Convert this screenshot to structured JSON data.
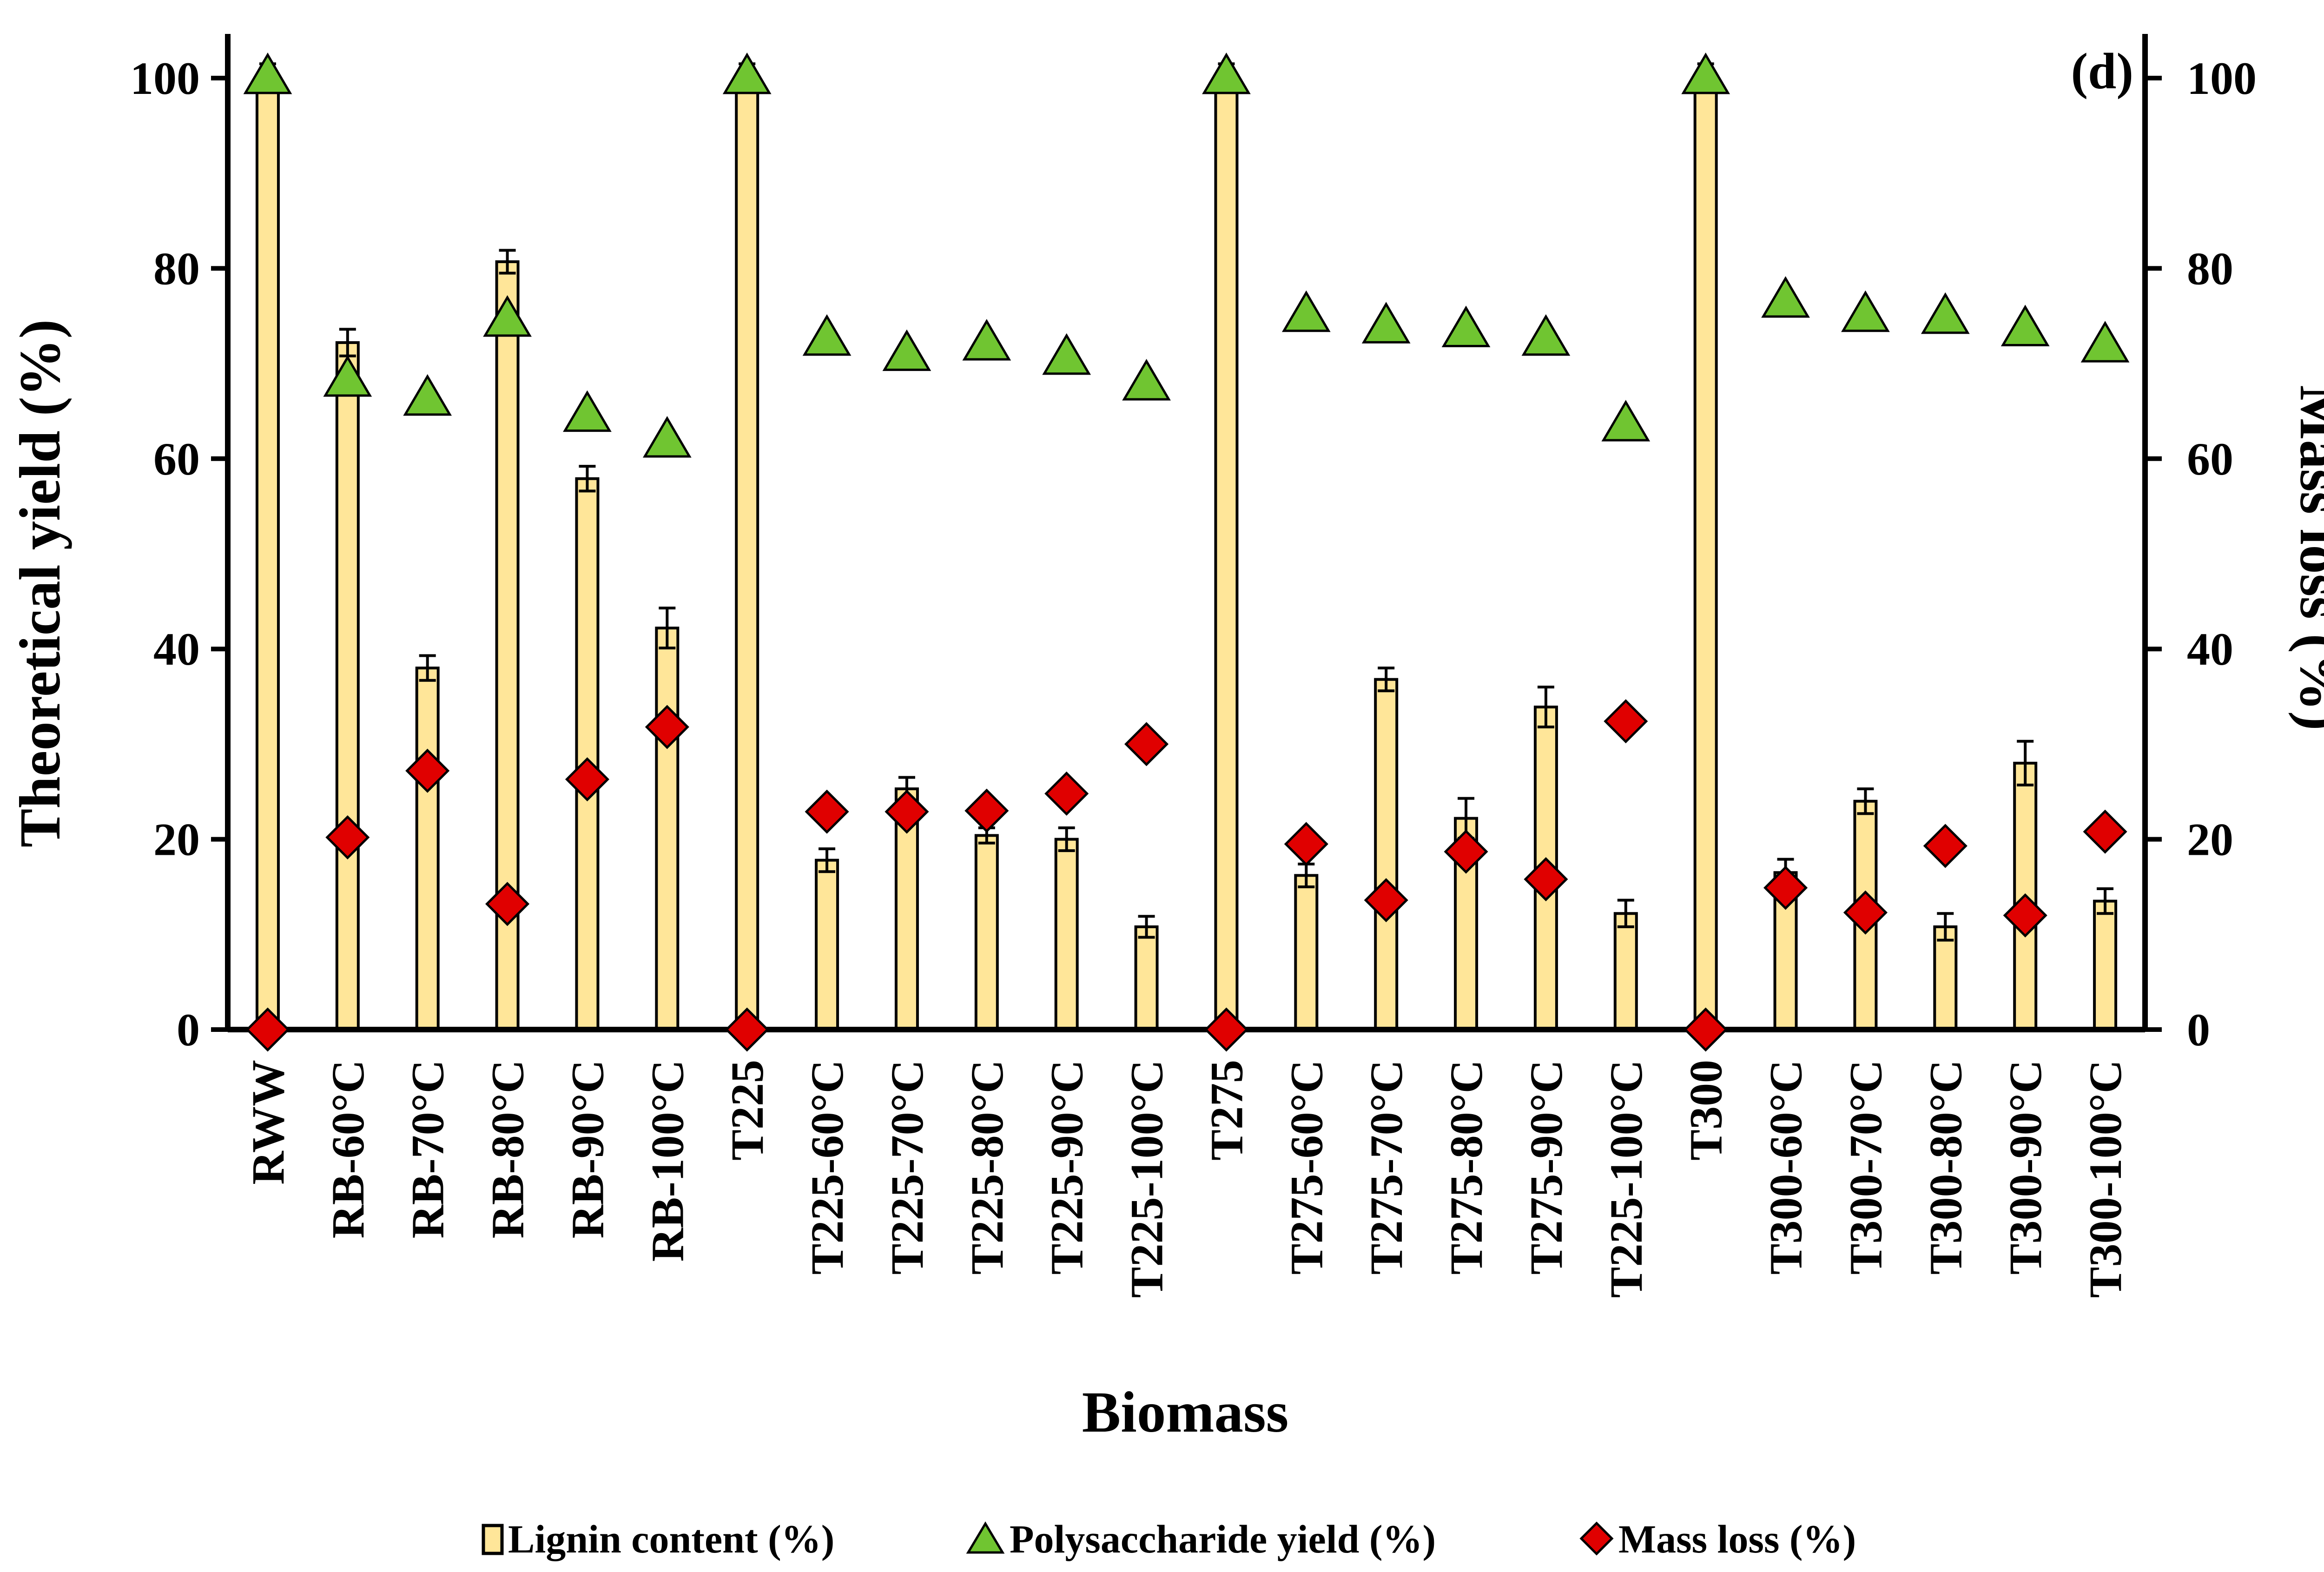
{
  "chart_data": {
    "type": "bar",
    "panel_label": "(d)",
    "xlabel": "Biomass",
    "ylabel_left": "Theoretical yield (%)",
    "ylabel_right": "Mass loss (%)",
    "ylim_left": [
      0,
      100
    ],
    "ylim_right": [
      0,
      100
    ],
    "yticks_left": [
      "0",
      "20",
      "40",
      "60",
      "80",
      "100"
    ],
    "yticks_right": [
      "0",
      "20",
      "40",
      "60",
      "80",
      "100"
    ],
    "categories": [
      "RWW",
      "RB-60°C",
      "RB-70°C",
      "RB-80°C",
      "RB-90°C",
      "RB-100°C",
      "T225",
      "T225-60°C",
      "T225-70°C",
      "T225-80°C",
      "T225-90°C",
      "T225-100°C",
      "T275",
      "T275-60°C",
      "T275-70°C",
      "T275-80°C",
      "T275-90°C",
      "T225-100°C",
      "T300",
      "T300-60°C",
      "T300-70°C",
      "T300-80°C",
      "T300-90°C",
      "T300-100°C"
    ],
    "series": [
      {
        "name": "Lignin content (%)",
        "kind": "bar",
        "axis": "left",
        "color": "#FFE699",
        "values": [
          100,
          72.2,
          38.0,
          80.7,
          57.9,
          42.2,
          100,
          17.8,
          25.3,
          20.4,
          20.0,
          10.8,
          100,
          16.2,
          36.8,
          22.2,
          33.9,
          12.2,
          100,
          16.5,
          24.0,
          10.8,
          28.0,
          13.5
        ],
        "errors": [
          1.5,
          1.4,
          1.3,
          1.2,
          1.3,
          2.1,
          1.5,
          1.2,
          1.2,
          0.8,
          1.2,
          1.1,
          1.5,
          1.2,
          1.2,
          2.1,
          2.1,
          1.4,
          1.5,
          1.4,
          1.3,
          1.4,
          2.3,
          1.3
        ]
      },
      {
        "name": "Polysaccharide yield (%)",
        "kind": "triangle",
        "axis": "left",
        "color": "#70C531",
        "values": [
          100,
          68.2,
          66.2,
          74.5,
          64.5,
          61.8,
          100,
          72.5,
          70.9,
          72.0,
          70.5,
          67.8,
          100,
          75.0,
          73.8,
          73.4,
          72.5,
          63.5,
          100,
          76.5,
          75.0,
          74.8,
          73.5,
          71.8
        ]
      },
      {
        "name": "Mass loss (%)",
        "kind": "diamond",
        "axis": "right",
        "color": "#E00000",
        "values": [
          0,
          20.2,
          27.2,
          13.2,
          26.3,
          31.8,
          0,
          22.9,
          22.9,
          23.0,
          24.8,
          30.0,
          0,
          19.5,
          13.6,
          18.7,
          15.8,
          32.4,
          0,
          14.9,
          12.3,
          19.3,
          12.0,
          20.8
        ]
      }
    ],
    "legend_position": "bottom"
  }
}
